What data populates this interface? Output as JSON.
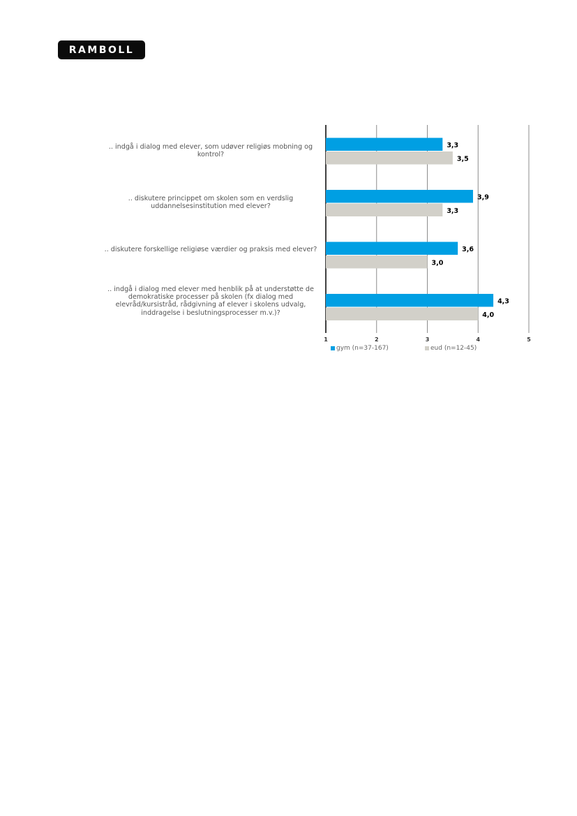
{
  "logo": {
    "text": "RAMBOLL"
  },
  "chart_data": {
    "type": "bar",
    "orientation": "horizontal",
    "categories": [
      ".. indgå i dialog med elever, som udøver religiøs mobning og kontrol?",
      ".. diskutere princippet om skolen som en verdslig uddannelsesinstitution med elever?",
      ".. diskutere forskellige religiøse værdier og praksis med elever?",
      ".. indgå i dialog med elever med henblik på at understøtte de demokratiske processer på skolen (fx dialog med elevråd/kursistråd, rådgivning af elever i skolens udvalg, inddragelse i beslutningsprocesser m.v.)?"
    ],
    "series": [
      {
        "name": "gym (n=37-167)",
        "color": "#009fe3",
        "values": [
          3.3,
          3.9,
          3.6,
          4.3
        ],
        "labels": [
          "3,3",
          "3,9",
          "3,6",
          "4,3"
        ]
      },
      {
        "name": "eud (n=12-45)",
        "color": "#d2d0c9",
        "values": [
          3.5,
          3.3,
          3.0,
          4.0
        ],
        "labels": [
          "3,5",
          "3,3",
          "3,0",
          "4,0"
        ]
      }
    ],
    "xlim": [
      1,
      5
    ],
    "xticks": [
      "1",
      "2",
      "3",
      "4",
      "5"
    ],
    "grid": true,
    "legend_position": "bottom"
  }
}
